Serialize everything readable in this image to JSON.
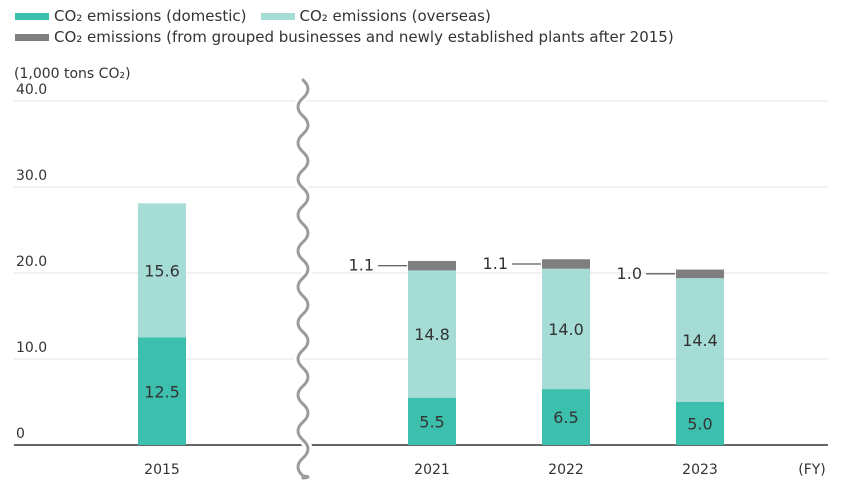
{
  "legend": [
    {
      "label": "CO₂ emissions (domestic)",
      "color": "#3dbfad"
    },
    {
      "label": "CO₂ emissions (overseas)",
      "color": "#a6dcd6"
    },
    {
      "label": "CO₂ emissions (from grouped businesses and newly established plants after 2015)",
      "color": "#7f7f80"
    }
  ],
  "chart_data": {
    "type": "bar",
    "stacked": true,
    "ylabel": "(1,000 tons CO₂)",
    "xlabel": "(FY)",
    "ylim": [
      0,
      40
    ],
    "y_ticks": [
      "0",
      "10.0",
      "20.0",
      "30.0",
      "40.0"
    ],
    "y_tick_values": [
      0,
      10,
      20,
      30,
      40
    ],
    "grid": true,
    "axis_break": "between 2015 and 2021",
    "categories": [
      "2015",
      "2021",
      "2022",
      "2023"
    ],
    "series": [
      {
        "name": "CO₂ emissions (domestic)",
        "color": "#3dbfad",
        "values": [
          12.5,
          5.5,
          6.5,
          5.0
        ],
        "labels": [
          "12.5",
          "5.5",
          "6.5",
          "5.0"
        ]
      },
      {
        "name": "CO₂ emissions (overseas)",
        "color": "#a6dcd6",
        "values": [
          15.6,
          14.8,
          14.0,
          14.4
        ],
        "labels": [
          "15.6",
          "14.8",
          "14.0",
          "14.4"
        ]
      },
      {
        "name": "CO₂ emissions (from grouped businesses and newly established plants after 2015)",
        "color": "#7f7f80",
        "values": [
          null,
          1.1,
          1.1,
          1.0
        ],
        "labels": [
          "",
          "1.1",
          "1.1",
          "1.0"
        ]
      }
    ]
  }
}
